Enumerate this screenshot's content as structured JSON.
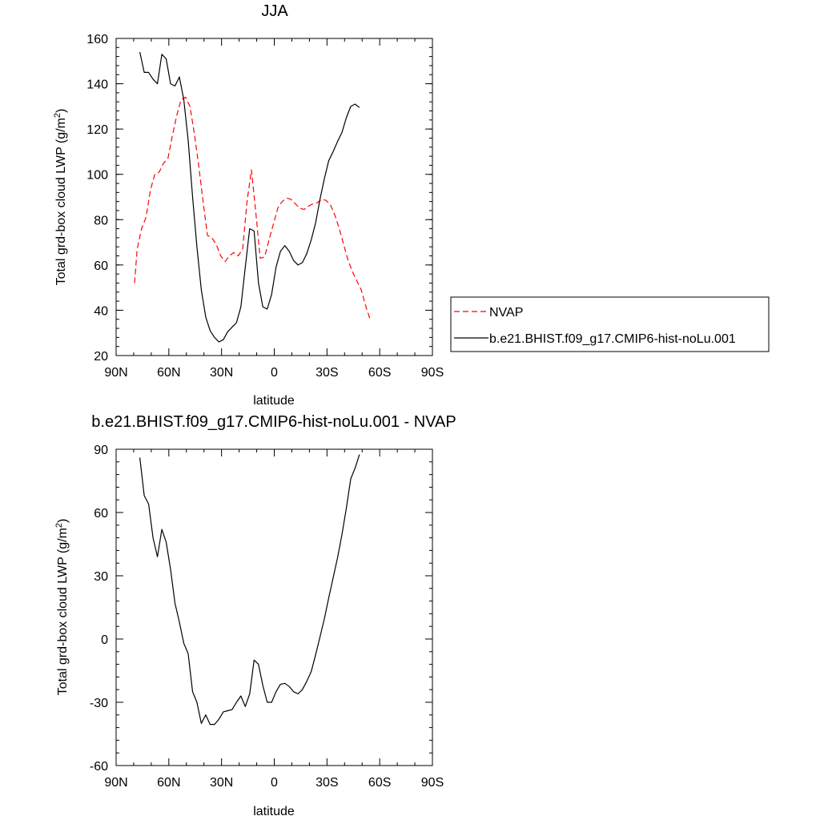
{
  "chart_data": [
    {
      "type": "line",
      "title": "JJA",
      "xlabel": "latitude",
      "ylabel": "Total grd-box cloud LWP (g/m",
      "ylabel_sup": "2",
      "ylabel_tail": ")",
      "xlim": [
        90,
        -90
      ],
      "ylim": [
        20,
        160
      ],
      "xticks": [
        90,
        60,
        30,
        0,
        -30,
        -60,
        -90
      ],
      "xtick_labels": [
        "90N",
        "60N",
        "30N",
        "0",
        "30S",
        "60S",
        "90S"
      ],
      "yticks": [
        20,
        40,
        60,
        80,
        100,
        120,
        140,
        160
      ],
      "ytick_labels": [
        "20",
        "40",
        "60",
        "80",
        "100",
        "120",
        "140",
        "160"
      ],
      "grid": false,
      "legend_position": "right",
      "series": [
        {
          "name": "NVAP",
          "color": "#ff0000",
          "dash": "dashed",
          "x": [
            79.5,
            78,
            75.5,
            73,
            70.5,
            68,
            65.5,
            63,
            60.5,
            58,
            55.5,
            53,
            50.5,
            48,
            45.5,
            43,
            40.5,
            38,
            35.5,
            33,
            30.5,
            28,
            25.5,
            23,
            20.5,
            18,
            15.5,
            13,
            10.5,
            8,
            5.5,
            3,
            0.5,
            -2,
            -4.5,
            -7,
            -9.5,
            -12,
            -14.5,
            -17,
            -19.5,
            -22,
            -24.5,
            -27,
            -29.5,
            -32,
            -34.5,
            -37,
            -39.5,
            -42,
            -44.5,
            -47,
            -49.5,
            -52,
            -54.5,
            -57,
            -59.5,
            -62,
            -64.5
          ],
          "y": [
            52,
            67,
            76,
            81,
            93,
            100,
            101,
            105,
            107,
            117,
            126,
            133,
            134,
            130,
            118,
            104,
            88,
            73,
            72,
            69,
            64,
            61.5,
            64,
            65.5,
            64,
            67,
            88,
            102,
            83,
            63,
            63.5,
            71,
            78,
            85,
            88,
            89.5,
            89,
            87,
            85,
            84.5,
            86,
            87,
            87.5,
            89,
            88.5,
            86.5,
            82,
            76,
            69,
            62,
            57,
            53,
            49,
            42,
            36,
            null,
            null,
            null,
            null
          ]
        },
        {
          "name": "b.e21.BHIST.f09_g17.CMIP6-hist-noLu.001",
          "color": "#000000",
          "dash": "solid",
          "x": [
            76.5,
            74,
            71.5,
            69,
            66.5,
            64,
            61.5,
            59,
            56.5,
            54,
            51.5,
            49,
            46.5,
            44,
            41.5,
            39,
            36.5,
            34,
            31.5,
            29,
            26.5,
            24,
            21.5,
            19,
            16.5,
            14,
            11.5,
            9,
            6.5,
            4,
            1.5,
            -1,
            -3.5,
            -6,
            -8.5,
            -11,
            -13.5,
            -16,
            -18.5,
            -21,
            -23.5,
            -26,
            -28.5,
            -31,
            -33.5,
            -36,
            -38.5,
            -41,
            -43.5,
            -46,
            -48.5,
            -51,
            -53.5,
            -56,
            -58.5,
            -61,
            -63.5
          ],
          "y": [
            154,
            145,
            145,
            142,
            140,
            153,
            151,
            140,
            139,
            143,
            133,
            115,
            90,
            68,
            49,
            37,
            31,
            28,
            26,
            27,
            30.5,
            32.5,
            34.5,
            41.5,
            59,
            76,
            75,
            52,
            41.5,
            40.5,
            47,
            59,
            66,
            68.5,
            66,
            62,
            60,
            61,
            65,
            71,
            78.5,
            89,
            98,
            106,
            110,
            114.5,
            118.5,
            125,
            130,
            131,
            129.5,
            null,
            null,
            null,
            null,
            null,
            null
          ]
        }
      ]
    },
    {
      "type": "line",
      "title": "b.e21.BHIST.f09_g17.CMIP6-hist-noLu.001 - NVAP",
      "xlabel": "latitude",
      "ylabel": "Total grd-box cloud LWP (g/m",
      "ylabel_sup": "2",
      "ylabel_tail": ")",
      "xlim": [
        90,
        -90
      ],
      "ylim": [
        -60,
        90
      ],
      "xticks": [
        90,
        60,
        30,
        0,
        -30,
        -60,
        -90
      ],
      "xtick_labels": [
        "90N",
        "60N",
        "30N",
        "0",
        "30S",
        "60S",
        "90S"
      ],
      "yticks": [
        -60,
        -30,
        0,
        30,
        60,
        90
      ],
      "ytick_labels": [
        "-60",
        "-30",
        "0",
        "30",
        "60",
        "90"
      ],
      "grid": false,
      "series": [
        {
          "color": "#000000",
          "dash": "solid",
          "x": [
            76.5,
            74,
            71.5,
            69,
            66.5,
            64,
            61.5,
            59,
            56.5,
            54,
            51.5,
            49,
            46.5,
            44,
            41.5,
            39,
            36.5,
            34,
            31.5,
            29,
            26.5,
            24,
            21.5,
            19,
            16.5,
            14,
            11.5,
            9,
            6.5,
            4,
            1.5,
            -1,
            -3.5,
            -6,
            -8.5,
            -11,
            -13.5,
            -16,
            -18.5,
            -21,
            -23.5,
            -26,
            -28.5,
            -31,
            -33.5,
            -36,
            -38.5,
            -41,
            -43.5,
            -46,
            -48.5,
            -51,
            -53.5,
            -56,
            -58.5,
            -61,
            -63.5
          ],
          "y": [
            86,
            68,
            64,
            48,
            39,
            52,
            46,
            33,
            17,
            8,
            -2,
            -7,
            -25,
            -30,
            -40,
            -36,
            -40.5,
            -40.5,
            -38,
            -34.5,
            -34,
            -33.5,
            -30,
            -27,
            -32,
            -26,
            -10,
            -12,
            -22,
            -30,
            -30,
            -25,
            -21.5,
            -21,
            -22.5,
            -25,
            -26,
            -24,
            -20,
            -15.5,
            -7.5,
            1,
            9.5,
            19.5,
            29,
            38.5,
            49.5,
            62,
            76,
            81,
            87.5,
            null,
            null,
            null,
            null,
            null,
            null
          ]
        }
      ]
    }
  ]
}
